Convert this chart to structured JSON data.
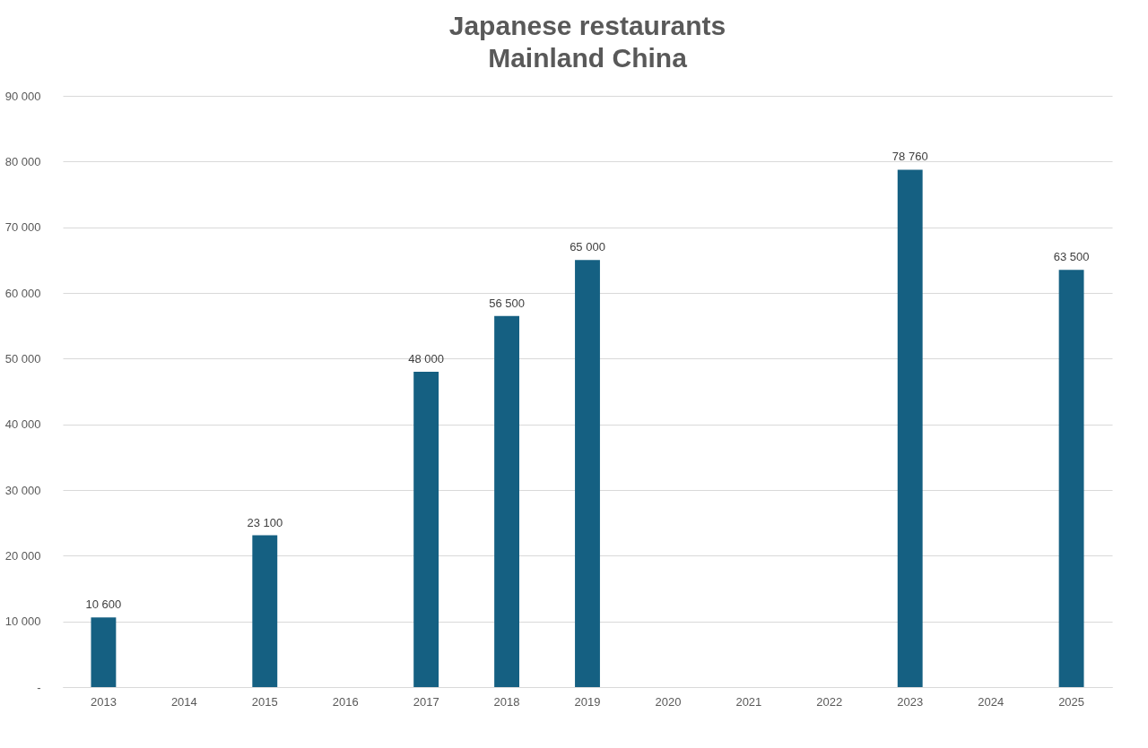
{
  "chart_data": {
    "type": "bar",
    "title": "Japanese restaurants",
    "subtitle": "Mainland China",
    "categories": [
      "2013",
      "2014",
      "2015",
      "2016",
      "2017",
      "2018",
      "2019",
      "2020",
      "2021",
      "2022",
      "2023",
      "2024",
      "2025"
    ],
    "values": [
      10600,
      null,
      23100,
      null,
      48000,
      56500,
      65000,
      null,
      null,
      null,
      78760,
      null,
      63500
    ],
    "value_labels": [
      "10 600",
      null,
      "23 100",
      null,
      "48 000",
      "56 500",
      "65 000",
      null,
      null,
      null,
      "78 760",
      null,
      "63 500"
    ],
    "color": "#156082",
    "ylim": [
      0,
      90000
    ],
    "yticks": [
      {
        "value": 0,
        "label": "-"
      },
      {
        "value": 10000,
        "label": "10 000"
      },
      {
        "value": 20000,
        "label": "20 000"
      },
      {
        "value": 30000,
        "label": "30 000"
      },
      {
        "value": 40000,
        "label": "40 000"
      },
      {
        "value": 50000,
        "label": "50 000"
      },
      {
        "value": 60000,
        "label": "60 000"
      },
      {
        "value": 70000,
        "label": "70 000"
      },
      {
        "value": 80000,
        "label": "80 000"
      },
      {
        "value": 90000,
        "label": "90 000"
      }
    ],
    "grid": "y"
  }
}
